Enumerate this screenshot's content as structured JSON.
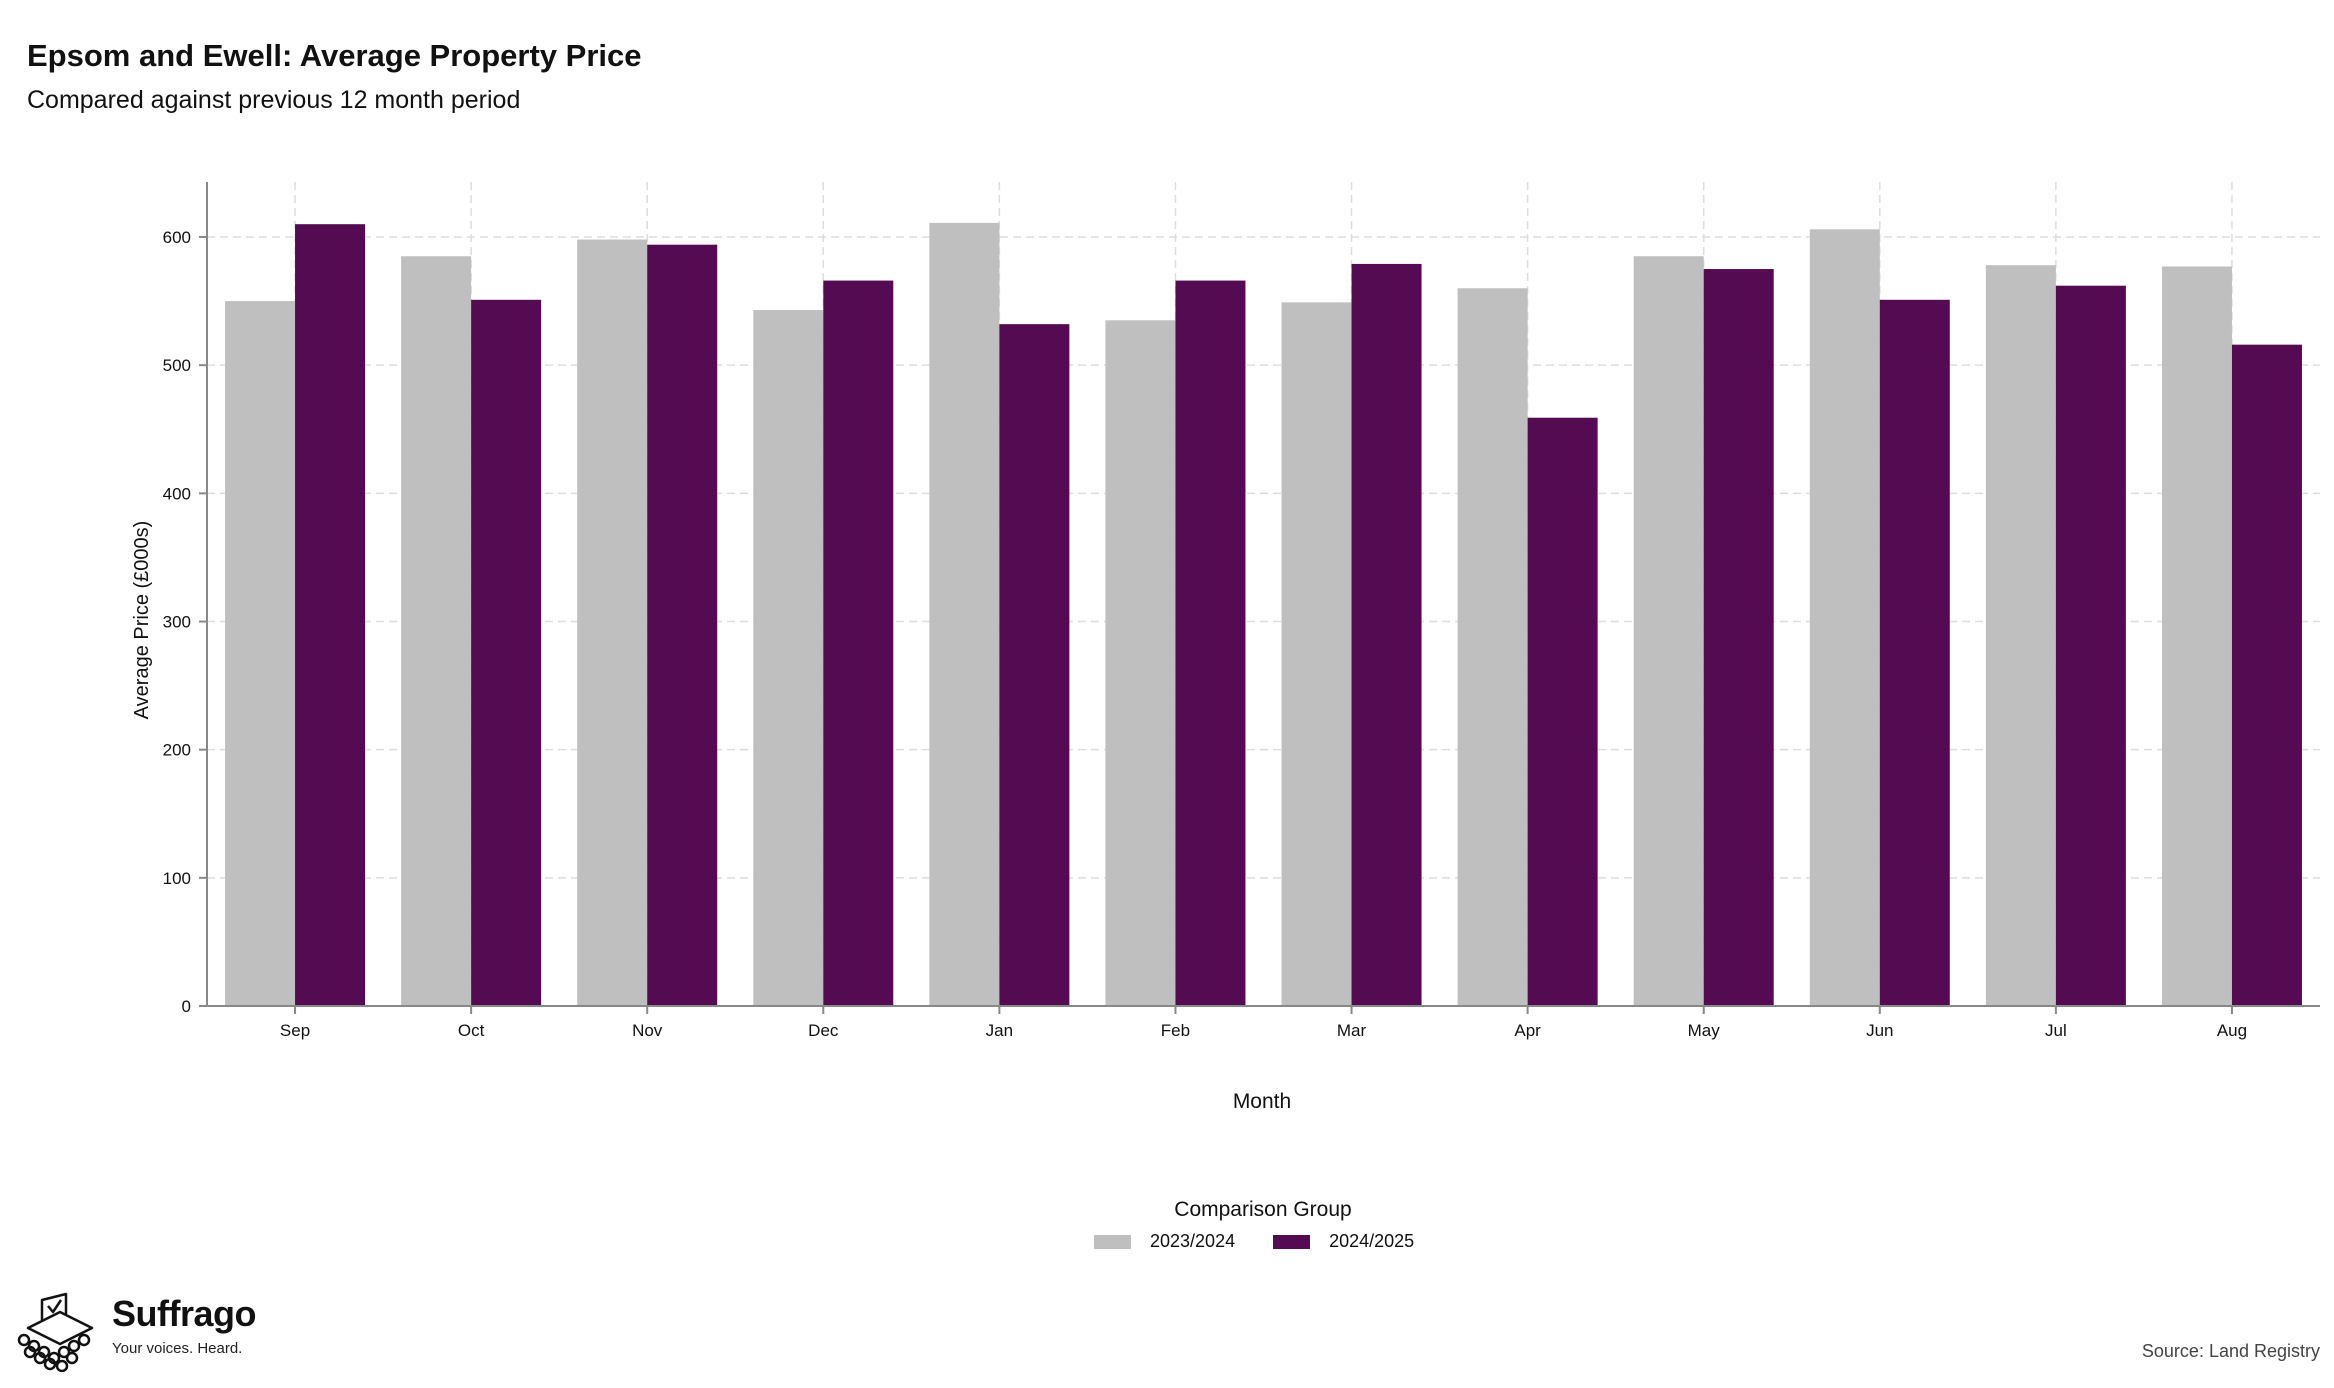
{
  "header": {
    "title": "Epsom and Ewell: Average Property Price",
    "subtitle": "Compared against previous 12 month period"
  },
  "chart_data": {
    "type": "bar",
    "title": "Epsom and Ewell: Average Property Price",
    "subtitle": "Compared against previous 12 month period",
    "xlabel": "Month",
    "ylabel": "Average Price (£000s)",
    "ylim": [
      0,
      640
    ],
    "yticks": [
      0,
      100,
      200,
      300,
      400,
      500,
      600
    ],
    "grid": true,
    "legend_position": "bottom",
    "legend_title": "Comparison Group",
    "categories": [
      "Sep",
      "Oct",
      "Nov",
      "Dec",
      "Jan",
      "Feb",
      "Mar",
      "Apr",
      "May",
      "Jun",
      "Jul",
      "Aug"
    ],
    "series": [
      {
        "name": "2023/2024",
        "color": "#bfbfbf",
        "values": [
          550,
          585,
          598,
          543,
          611,
          535,
          549,
          560,
          585,
          606,
          578,
          577
        ]
      },
      {
        "name": "2024/2025",
        "color": "#540b51",
        "values": [
          610,
          551,
          594,
          566,
          532,
          566,
          579,
          459,
          575,
          551,
          562,
          516
        ]
      }
    ]
  },
  "logo": {
    "name": "Suffrago",
    "tagline": "Your voices. Heard.",
    "icon": "ballot-box-icon"
  },
  "source": "Source: Land Registry"
}
